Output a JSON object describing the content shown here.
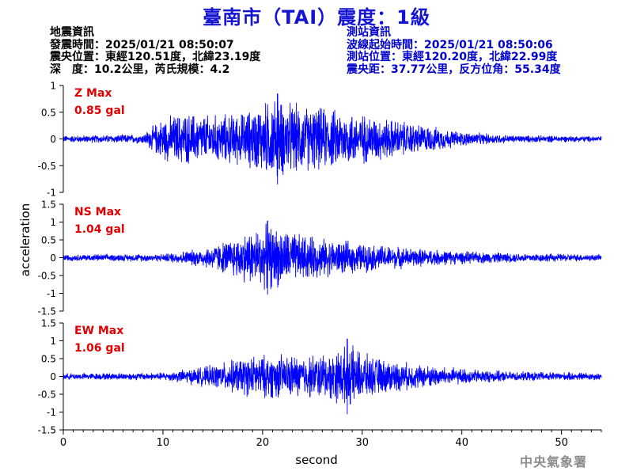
{
  "title": "臺南市（TAI）震度：1級",
  "quake_info": {
    "heading": "地震資訊",
    "origin_time": "發震時間：2025/01/21 08:50:07",
    "epicenter": "震央位置：東經120.51度，北緯23.19度",
    "depth_magnitude": "深　度：10.2公里，芮氏規模：4.2"
  },
  "station_info": {
    "heading": "測站資訊",
    "wave_start_time": "波線起始時間：2025/01/21 08:50:06",
    "station_location": "測站位置：東經120.20度，北緯22.99度",
    "distance_azimuth": "震央距：37.77公里，反方位角：55.34度"
  },
  "watermark": "中央氣象署",
  "chart_data": {
    "type": "line",
    "xlabel": "second",
    "ylabel": "acceleration",
    "xlim": [
      0,
      54
    ],
    "x_ticks": [
      "0",
      "10",
      "20",
      "30",
      "40",
      "50"
    ],
    "x_tick_values": [
      0,
      10,
      20,
      30,
      40,
      50
    ],
    "color_trace": "#0000ff",
    "color_label": "#e00000",
    "panels": [
      {
        "component": "Z",
        "max_label": "Z Max",
        "max_value": "0.85 gal",
        "ylim": [
          -1,
          1
        ],
        "y_ticks": [
          "1",
          "0.5",
          "0",
          "-0.5",
          "-1"
        ],
        "y_tick_values": [
          1,
          0.5,
          0,
          -0.5,
          -1
        ],
        "peak_abs": 0.85,
        "peak_time": 21.5,
        "noise_level": 0.06,
        "envelope": [
          [
            0,
            0.07
          ],
          [
            8,
            0.1
          ],
          [
            10,
            0.45
          ],
          [
            12,
            0.55
          ],
          [
            15,
            0.5
          ],
          [
            18,
            0.55
          ],
          [
            21,
            0.85
          ],
          [
            24,
            0.7
          ],
          [
            28,
            0.6
          ],
          [
            32,
            0.45
          ],
          [
            36,
            0.3
          ],
          [
            40,
            0.15
          ],
          [
            45,
            0.08
          ],
          [
            54,
            0.06
          ]
        ]
      },
      {
        "component": "NS",
        "max_label": "NS Max",
        "max_value": "1.04 gal",
        "ylim": [
          -1.5,
          1.5
        ],
        "y_ticks": [
          "1.5",
          "1",
          "0.5",
          "0",
          "-0.5",
          "-1",
          "-1.5"
        ],
        "y_tick_values": [
          1.5,
          1,
          0.5,
          0,
          -0.5,
          -1,
          -1.5
        ],
        "peak_abs": 1.04,
        "peak_time": 20.5,
        "noise_level": 0.08,
        "envelope": [
          [
            0,
            0.1
          ],
          [
            10,
            0.12
          ],
          [
            14,
            0.3
          ],
          [
            17,
            0.6
          ],
          [
            19,
            0.9
          ],
          [
            21,
            1.0
          ],
          [
            23,
            0.8
          ],
          [
            26,
            0.6
          ],
          [
            30,
            0.45
          ],
          [
            35,
            0.3
          ],
          [
            40,
            0.2
          ],
          [
            45,
            0.15
          ],
          [
            54,
            0.1
          ]
        ]
      },
      {
        "component": "EW",
        "max_label": "EW Max",
        "max_value": "1.06 gal",
        "ylim": [
          -1.5,
          1.5
        ],
        "y_ticks": [
          "1.5",
          "1",
          "0.5",
          "0",
          "-0.5",
          "-1",
          "-1.5"
        ],
        "y_tick_values": [
          1.5,
          1,
          0.5,
          0,
          -0.5,
          -1,
          -1.5
        ],
        "peak_abs": 1.06,
        "peak_time": 28.5,
        "noise_level": 0.08,
        "envelope": [
          [
            0,
            0.1
          ],
          [
            10,
            0.12
          ],
          [
            15,
            0.35
          ],
          [
            18,
            0.6
          ],
          [
            21,
            0.7
          ],
          [
            24,
            0.65
          ],
          [
            27,
            0.75
          ],
          [
            28.5,
            1.0
          ],
          [
            31,
            0.6
          ],
          [
            35,
            0.4
          ],
          [
            40,
            0.25
          ],
          [
            45,
            0.15
          ],
          [
            54,
            0.12
          ]
        ]
      }
    ]
  }
}
